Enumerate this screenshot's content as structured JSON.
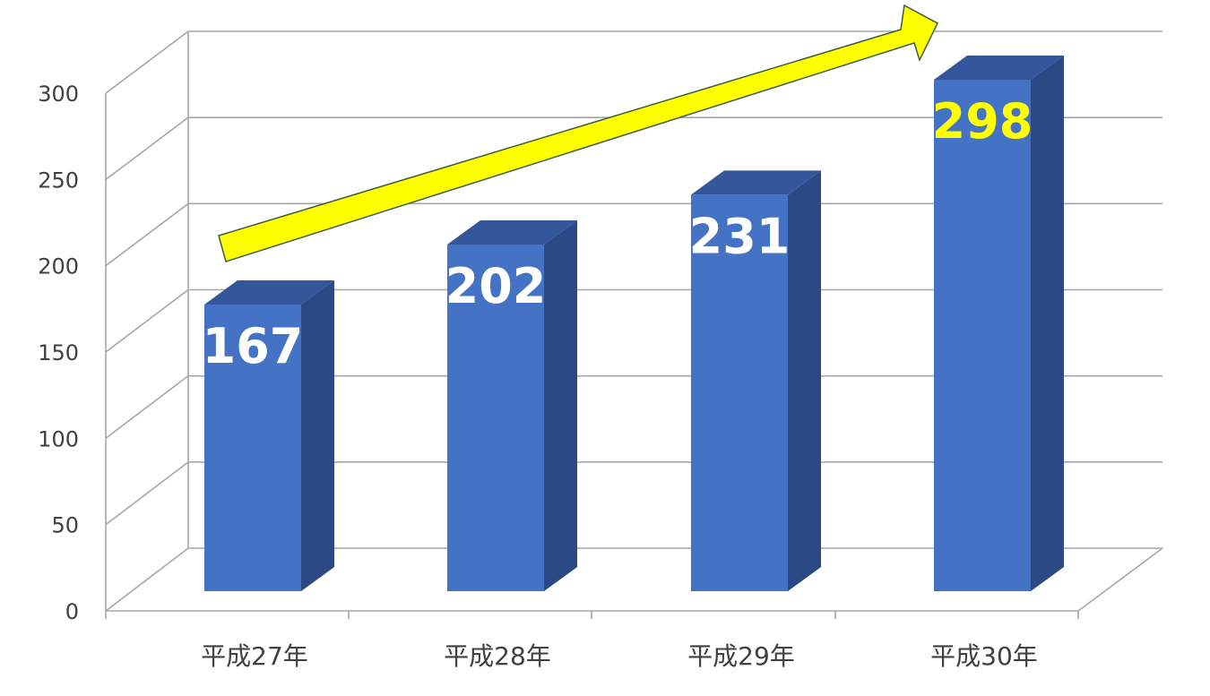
{
  "chart_data": {
    "type": "bar",
    "style": "3d-column",
    "categories": [
      "平成27年",
      "平成28年",
      "平成29年",
      "平成30年"
    ],
    "values": [
      167,
      202,
      231,
      298
    ],
    "data_labels": [
      "167",
      "202",
      "231",
      "298"
    ],
    "ylim": [
      0,
      300
    ],
    "yticks": [
      0,
      50,
      100,
      150,
      200,
      250,
      300
    ],
    "grid": true,
    "legend": "none",
    "title": "",
    "xlabel": "",
    "ylabel": "",
    "annotations": [
      {
        "type": "arrow",
        "direction": "up-right",
        "color": "#FFFF00",
        "meaning": "increasing trend"
      }
    ]
  },
  "colors": {
    "bar_front": "#4472C4",
    "bar_side": "#2B4A85",
    "bar_top": "#34569A",
    "gridline": "#A6A6A6",
    "axis_text": "#404040",
    "label_default": "#FFFFFF",
    "label_highlight": "#FFFF00",
    "arrow_fill": "#FFFF00",
    "arrow_stroke": "#3B5E3B"
  },
  "highlight_index": 3
}
